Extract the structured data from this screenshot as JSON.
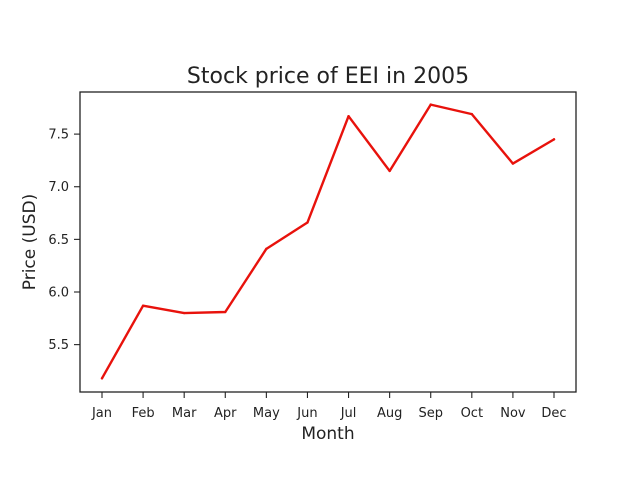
{
  "chart_data": {
    "type": "line",
    "title": "Stock price of EEI in 2005",
    "xlabel": "Month",
    "ylabel": "Price (USD)",
    "categories": [
      "Jan",
      "Feb",
      "Mar",
      "Apr",
      "May",
      "Jun",
      "Jul",
      "Aug",
      "Sep",
      "Oct",
      "Nov",
      "Dec"
    ],
    "series": [
      {
        "name": "EEI",
        "color": "#e8120c",
        "values": [
          5.18,
          5.87,
          5.8,
          5.81,
          6.41,
          6.66,
          7.67,
          7.15,
          7.78,
          7.69,
          7.22,
          7.45
        ]
      }
    ],
    "ylim": [
      5.05,
      7.9
    ],
    "yticks": [
      5.5,
      6.0,
      6.5,
      7.0,
      7.5
    ],
    "ytick_labels": [
      "5.5",
      "6.0",
      "6.5",
      "7.0",
      "7.5"
    ],
    "grid": false
  }
}
